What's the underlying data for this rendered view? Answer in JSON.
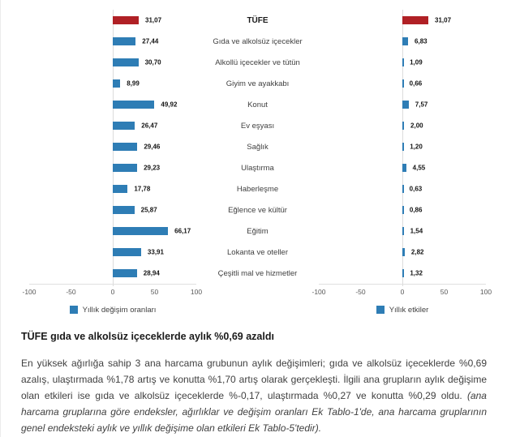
{
  "chart_data": {
    "type": "bar",
    "orientation": "horizontal",
    "title": "",
    "categories": [
      "TÜFE",
      "Gıda ve alkolsüz içecekler",
      "Alkollü içecekler ve tütün",
      "Giyim ve ayakkabı",
      "Konut",
      "Ev eşyası",
      "Sağlık",
      "Ulaştırma",
      "Haberleşme",
      "Eğlence ve kültür",
      "Eğitim",
      "Lokanta ve oteller",
      "Çeşitli mal ve hizmetler"
    ],
    "series": [
      {
        "name": "Yıllık değişim oranları",
        "values": [
          31.07,
          27.44,
          30.7,
          8.99,
          49.92,
          26.47,
          29.46,
          29.23,
          17.78,
          25.87,
          66.17,
          33.91,
          28.94
        ],
        "value_labels": [
          "31,07",
          "27,44",
          "30,70",
          "8,99",
          "49,92",
          "26,47",
          "29,46",
          "29,23",
          "17,78",
          "25,87",
          "66,17",
          "33,91",
          "28,94"
        ]
      },
      {
        "name": "Yıllık etkiler",
        "values": [
          31.07,
          6.83,
          1.09,
          0.66,
          7.57,
          2.0,
          1.2,
          4.55,
          0.63,
          0.86,
          1.54,
          2.82,
          1.32
        ],
        "value_labels": [
          "31,07",
          "6,83",
          "1,09",
          "0,66",
          "7,57",
          "2,00",
          "1,20",
          "4,55",
          "0,63",
          "0,86",
          "1,54",
          "2,82",
          "1,32"
        ]
      }
    ],
    "xlim": [
      -100,
      100
    ],
    "x_ticks": [
      "-100",
      "-50",
      "0",
      "50",
      "100"
    ],
    "grid": "zero-line-only",
    "legend_position": "bottom-center",
    "highlight_category": "TÜFE",
    "colors": {
      "bar": "#2e7db5",
      "highlight": "#b02025",
      "axis": "#e0e0e0"
    }
  },
  "article": {
    "heading": "TÜFE gıda ve alkolsüz içeceklerde aylık %0,69 azaldı",
    "body_main": "En yüksek ağırlığa sahip 3 ana harcama grubunun aylık değişimleri; gıda ve alkolsüz içeceklerde %0,69 azalış, ulaştırmada %1,78 artış ve konutta %1,70 artış olarak gerçekleşti. İlgili ana grupların aylık değişime olan etkileri ise gıda ve alkolsüz içeceklerde %-0,17, ulaştırmada %0,27 ve konutta %0,29 oldu.",
    "body_note": "(ana harcama gruplarına göre endeksler, ağırlıklar ve değişim oranları Ek Tablo-1'de, ana harcama gruplarının genel endeksteki aylık ve yıllık değişime olan etkileri Ek Tablo-5'tedir)."
  }
}
